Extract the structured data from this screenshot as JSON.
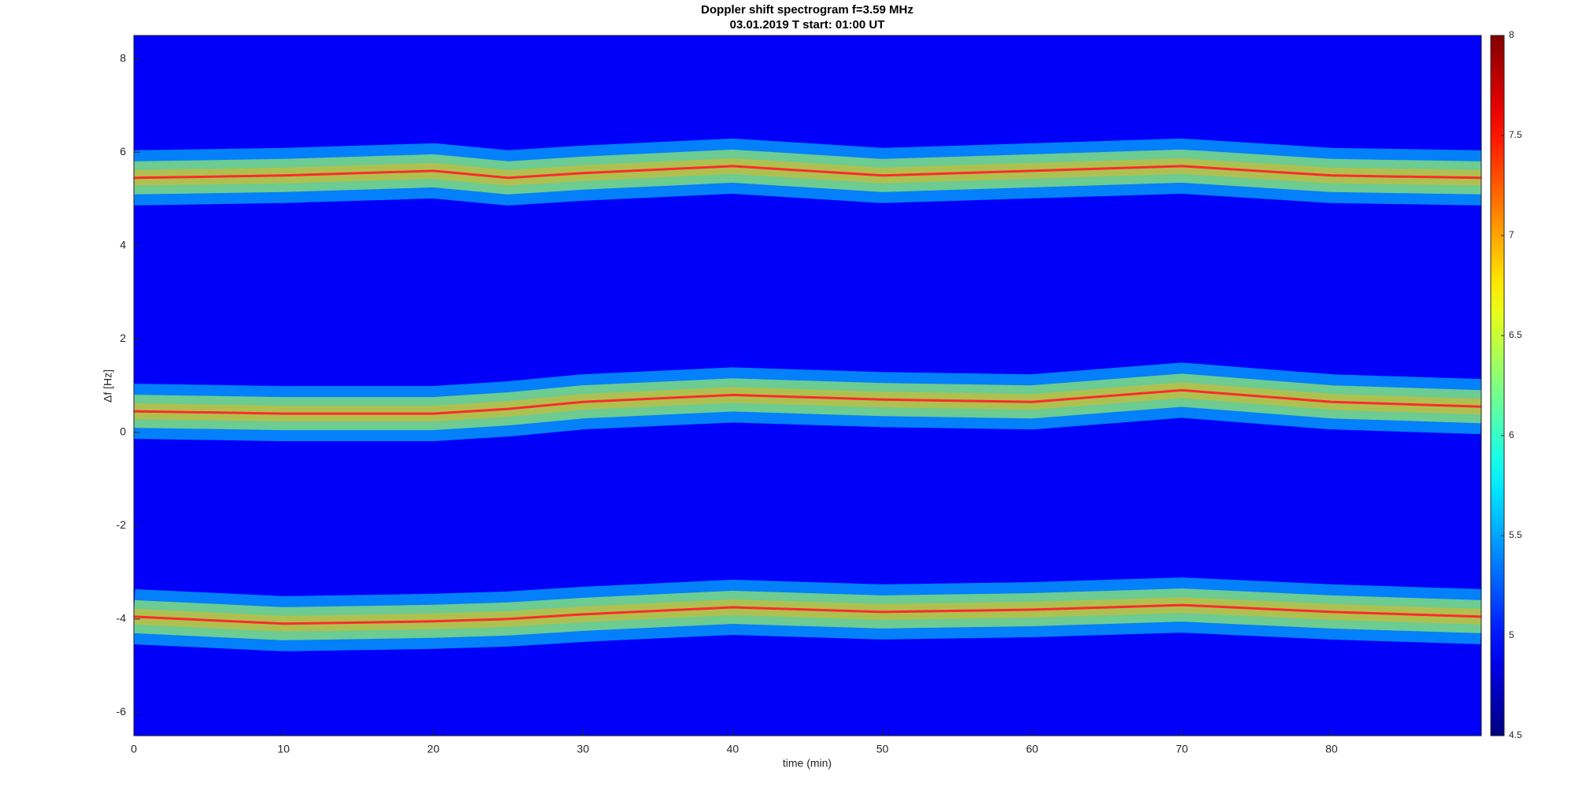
{
  "chart_data": {
    "type": "spectrogram",
    "title": "Doppler shift spectrogram f=3.59 MHz",
    "subtitle": "03.01.2019   T start: 01:00 UT",
    "x_label": "time (min)",
    "y_label": "Δf [Hz]",
    "xlim": [
      0,
      90
    ],
    "xticks": [
      0,
      10,
      20,
      30,
      40,
      50,
      60,
      70,
      80
    ],
    "ylim": [
      -6.5,
      8.5
    ],
    "yticks": [
      -6,
      -4,
      -2,
      0,
      2,
      4,
      6,
      8
    ],
    "colormap": "jet",
    "clim": [
      4.5,
      8
    ],
    "cticks": [
      4.5,
      5,
      5.5,
      6,
      6.5,
      7,
      7.5,
      8
    ],
    "x": [
      0,
      10,
      20,
      25,
      30,
      40,
      50,
      60,
      70,
      80,
      90
    ],
    "series": [
      {
        "color": "#ff2a2a",
        "values": [
          5.45,
          5.5,
          5.6,
          5.45,
          5.55,
          5.7,
          5.5,
          5.6,
          5.7,
          5.5,
          5.45
        ]
      },
      {
        "color": "#ff2a2a",
        "values": [
          0.45,
          0.4,
          0.4,
          0.5,
          0.65,
          0.8,
          0.7,
          0.65,
          0.9,
          0.65,
          0.55
        ]
      },
      {
        "color": "#ff2a2a",
        "values": [
          -3.95,
          -4.1,
          -4.05,
          -4.0,
          -3.9,
          -3.75,
          -3.85,
          -3.8,
          -3.7,
          -3.85,
          -3.95
        ]
      }
    ]
  }
}
